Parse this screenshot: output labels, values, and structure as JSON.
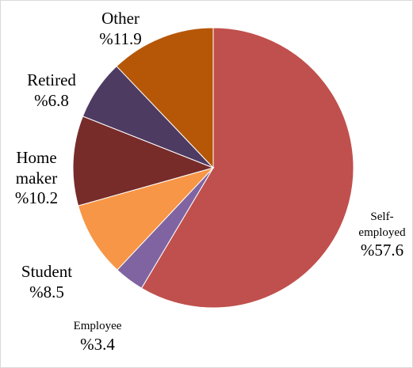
{
  "chart_data": {
    "type": "pie",
    "title": "",
    "start_angle_deg": 0,
    "direction": "clockwise",
    "slices": [
      {
        "category": "Self-employed",
        "label_lines": [
          "Self-",
          "employed"
        ],
        "value_label": "%57.6",
        "value": 57.6,
        "color": "#c0504d"
      },
      {
        "category": "Employee",
        "label_lines": [
          "Employee"
        ],
        "value_label": "%3.4",
        "value": 3.4,
        "color": "#8064a2"
      },
      {
        "category": "Student",
        "label_lines": [
          "Student"
        ],
        "value_label": "%8.5",
        "value": 8.5,
        "color": "#f79646"
      },
      {
        "category": "Home maker",
        "label_lines": [
          "Home",
          "maker"
        ],
        "value_label": "%10.2",
        "value": 10.2,
        "color": "#772c2a"
      },
      {
        "category": "Retired",
        "label_lines": [
          "Retired"
        ],
        "value_label": "%6.8",
        "value": 6.8,
        "color": "#4e3b62"
      },
      {
        "category": "Other",
        "label_lines": [
          "Other"
        ],
        "value_label": "%11.9",
        "value": 11.9,
        "color": "#b65708"
      }
    ],
    "legend": "none",
    "slice_border_color": "#ffffff"
  }
}
